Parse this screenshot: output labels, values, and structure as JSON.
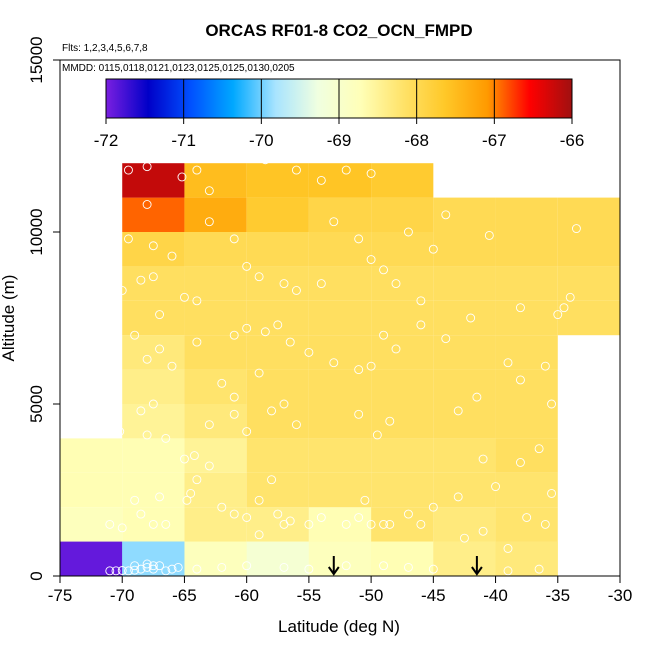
{
  "chart_data": {
    "type": "heatmap",
    "title": "ORCAS RF01-8 CO2_OCN_FMPD",
    "annotations": [
      "Flts: 1,2,3,4,5,6,7,8",
      "MMDD: 0115,0118,0121,0123,0125,0125,0130,0205"
    ],
    "xlabel": "Latitude (deg N)",
    "ylabel": "Altitude (m)",
    "xlim": [
      -75,
      -30
    ],
    "ylim": [
      0,
      15000
    ],
    "x_ticks": [
      -75,
      -70,
      -65,
      -60,
      -55,
      -50,
      -45,
      -40,
      -35,
      -30
    ],
    "y_ticks": [
      0,
      5000,
      10000,
      15000
    ],
    "colorbar": {
      "min": -72,
      "max": -66,
      "ticks": [
        -72,
        -71,
        -70,
        -69,
        -68,
        -67,
        -66
      ],
      "palette": [
        "#7a1fe0",
        "#0000c8",
        "#0050ff",
        "#00a8ff",
        "#a8e4ff",
        "#f0ffe0",
        "#ffffb8",
        "#ffe36a",
        "#ffc828",
        "#ff9a00",
        "#ff0000",
        "#a01010"
      ]
    },
    "x_bins": [
      -75,
      -70,
      -65,
      -60,
      -55,
      -50,
      -45,
      -40,
      -35,
      -30
    ],
    "y_bins": [
      0,
      1000,
      2000,
      3000,
      4000,
      5000,
      6000,
      7000,
      8000,
      9000,
      10000,
      11000,
      12000
    ],
    "cells": [
      [
        -69.1,
        -70.1,
        -68.5,
        -68.7,
        -68.5,
        -68.6,
        -68.3,
        -68.3,
        null
      ],
      [
        -68.8,
        -68.7,
        -68.4,
        -68.4,
        -68.7,
        -68.2,
        -68.3,
        -68.2,
        null
      ],
      [
        -68.7,
        -68.7,
        -68.4,
        -68.2,
        -68.2,
        -68.2,
        -68.2,
        -68.2,
        null
      ],
      [
        -68.7,
        -68.7,
        -68.5,
        -68.2,
        -68.2,
        -68.2,
        -68.2,
        -68.1,
        null
      ],
      [
        null,
        -68.5,
        -68.3,
        -68.1,
        -68.1,
        -68.1,
        -68.1,
        -68.1,
        null
      ],
      [
        null,
        -68.4,
        -68.2,
        -68.1,
        -68.1,
        -68.1,
        -68.1,
        -68.1,
        null
      ],
      [
        null,
        -68.3,
        -68.1,
        -68.1,
        -68.1,
        -68.1,
        -68.1,
        -68.1,
        null
      ],
      [
        null,
        -68.1,
        -68.1,
        -68.1,
        -68.1,
        -68.1,
        -68.1,
        -68.1,
        -68.1
      ],
      [
        null,
        -68.1,
        -68.1,
        -68.1,
        -68.1,
        -68.1,
        -68.1,
        -68.1,
        -68.1
      ],
      [
        null,
        -67.9,
        -68.0,
        -68.0,
        -68.0,
        -68.0,
        -68.0,
        -68.0,
        -68.0
      ],
      [
        null,
        -66.9,
        -67.3,
        -67.7,
        -67.9,
        -67.9,
        -68.0,
        -68.0,
        -68.0
      ],
      [
        null,
        -66.2,
        -67.5,
        -67.6,
        -67.6,
        -67.7,
        null,
        null,
        null
      ]
    ],
    "bottom_cells": [
      {
        "x0": -75,
        "x1": -70,
        "value": -71.9
      },
      {
        "x0": -70,
        "x1": -65,
        "value": -69.9
      },
      {
        "x0": -65,
        "x1": -60,
        "value": -68.8
      },
      {
        "x0": -60,
        "x1": -55,
        "value": -69.1
      },
      {
        "x0": -55,
        "x1": -50,
        "value": -68.8
      },
      {
        "x0": -50,
        "x1": -45,
        "value": -68.7
      },
      {
        "x0": -45,
        "x1": -40,
        "value": -68.4
      },
      {
        "x0": -40,
        "x1": -35,
        "value": -68.3
      }
    ],
    "arrows_at_latitude": [
      -53,
      -41.5
    ],
    "points": [
      [
        -71,
        150
      ],
      [
        -70.5,
        150
      ],
      [
        -70,
        160
      ],
      [
        -69.5,
        150
      ],
      [
        -69,
        170
      ],
      [
        -68.5,
        200
      ],
      [
        -68,
        250
      ],
      [
        -67.5,
        200
      ],
      [
        -67,
        300
      ],
      [
        -66.5,
        150
      ],
      [
        -66,
        200
      ],
      [
        -65.5,
        250
      ],
      [
        -68,
        350
      ],
      [
        -67.5,
        300
      ],
      [
        -69,
        300
      ],
      [
        -71,
        1500
      ],
      [
        -70,
        1400
      ],
      [
        -68.5,
        1800
      ],
      [
        -67.5,
        1500
      ],
      [
        -66.5,
        1500
      ],
      [
        -69,
        2200
      ],
      [
        -67,
        2300
      ],
      [
        -70.2,
        4200
      ],
      [
        -68,
        4100
      ],
      [
        -66.5,
        4000
      ],
      [
        -68.5,
        4800
      ],
      [
        -67.5,
        5000
      ],
      [
        -64.5,
        2400
      ],
      [
        -64,
        2800
      ],
      [
        -63,
        3200
      ],
      [
        -62,
        2000
      ],
      [
        -61,
        1800
      ],
      [
        -64.2,
        3500
      ],
      [
        -63,
        4400
      ],
      [
        -61,
        4700
      ],
      [
        -64.8,
        2200
      ],
      [
        -65,
        3400
      ],
      [
        -60,
        1700
      ],
      [
        -59,
        2200
      ],
      [
        -58,
        2800
      ],
      [
        -57.5,
        1800
      ],
      [
        -56.5,
        1600
      ],
      [
        -59,
        1200
      ],
      [
        -57,
        1500
      ],
      [
        -55,
        1500
      ],
      [
        -54,
        1700
      ],
      [
        -60,
        4200
      ],
      [
        -58,
        4800
      ],
      [
        -57,
        5000
      ],
      [
        -56,
        4400
      ],
      [
        -52,
        1500
      ],
      [
        -51,
        1700
      ],
      [
        -50,
        1500
      ],
      [
        -49,
        1500
      ],
      [
        -48.5,
        1500
      ],
      [
        -47,
        1800
      ],
      [
        -46,
        1500
      ],
      [
        -45,
        2000
      ],
      [
        -43,
        2300
      ],
      [
        -50.5,
        2200
      ],
      [
        -49.5,
        4100
      ],
      [
        -48.5,
        4500
      ],
      [
        -51,
        4700
      ],
      [
        -41,
        3400
      ],
      [
        -40,
        2600
      ],
      [
        -38,
        3300
      ],
      [
        -36.5,
        3700
      ],
      [
        -35.5,
        2400
      ],
      [
        -43,
        4800
      ],
      [
        -41.5,
        5200
      ],
      [
        -39,
        6200
      ],
      [
        -38,
        5700
      ],
      [
        -36,
        6100
      ],
      [
        -35.5,
        5000
      ],
      [
        -70.5,
        12000
      ],
      [
        -69.5,
        11800
      ],
      [
        -68,
        11900
      ],
      [
        -67,
        12200
      ],
      [
        -65.2,
        11600
      ],
      [
        -64,
        11800
      ],
      [
        -63,
        11200
      ],
      [
        -68,
        10800
      ],
      [
        -67.5,
        9600
      ],
      [
        -66,
        9300
      ],
      [
        -68.5,
        8600
      ],
      [
        -67.5,
        8700
      ],
      [
        -67,
        7600
      ],
      [
        -65,
        8100
      ],
      [
        -64,
        8000
      ],
      [
        -63,
        10300
      ],
      [
        -61,
        9800
      ],
      [
        -60,
        9000
      ],
      [
        -59,
        8700
      ],
      [
        -57,
        8500
      ],
      [
        -56,
        8300
      ],
      [
        -54,
        8500
      ],
      [
        -53,
        10300
      ],
      [
        -51,
        9800
      ],
      [
        -50,
        9200
      ],
      [
        -49,
        8900
      ],
      [
        -48,
        8500
      ],
      [
        -46,
        8000
      ],
      [
        -61,
        7000
      ],
      [
        -60,
        7200
      ],
      [
        -58.5,
        7100
      ],
      [
        -57.5,
        7300
      ],
      [
        -56.5,
        6800
      ],
      [
        -55,
        6500
      ],
      [
        -53,
        6200
      ],
      [
        -51,
        6000
      ],
      [
        -50,
        6100
      ],
      [
        -49,
        7000
      ],
      [
        -48,
        6600
      ],
      [
        -46,
        7300
      ],
      [
        -44,
        6900
      ],
      [
        -42,
        7500
      ],
      [
        -40.5,
        9900
      ],
      [
        -38,
        7800
      ],
      [
        -35,
        7600
      ],
      [
        -34,
        8100
      ],
      [
        -33.5,
        10100
      ],
      [
        -34.5,
        7800
      ],
      [
        -69,
        7000
      ],
      [
        -68,
        6300
      ],
      [
        -67,
        6600
      ],
      [
        -66,
        6100
      ],
      [
        -64,
        6800
      ],
      [
        -62,
        5600
      ],
      [
        -61,
        5200
      ],
      [
        -59,
        5900
      ],
      [
        -70,
        8300
      ],
      [
        -69.5,
        9800
      ],
      [
        -70.5,
        12300
      ],
      [
        -58.5,
        12100
      ],
      [
        -56,
        11800
      ],
      [
        -54,
        11500
      ],
      [
        -52,
        11800
      ],
      [
        -50,
        11700
      ],
      [
        -47,
        10000
      ],
      [
        -45,
        9500
      ],
      [
        -44,
        10500
      ],
      [
        -42.5,
        1100
      ],
      [
        -41,
        1300
      ],
      [
        -39,
        800
      ],
      [
        -37.5,
        1700
      ],
      [
        -36,
        1500
      ],
      [
        -45,
        200
      ],
      [
        -47,
        250
      ],
      [
        -49,
        300
      ],
      [
        -52,
        300
      ],
      [
        -55,
        200
      ],
      [
        -57,
        250
      ],
      [
        -60,
        300
      ],
      [
        -62,
        250
      ],
      [
        -64,
        200
      ],
      [
        -36.5,
        200
      ],
      [
        -39,
        150
      ]
    ]
  }
}
